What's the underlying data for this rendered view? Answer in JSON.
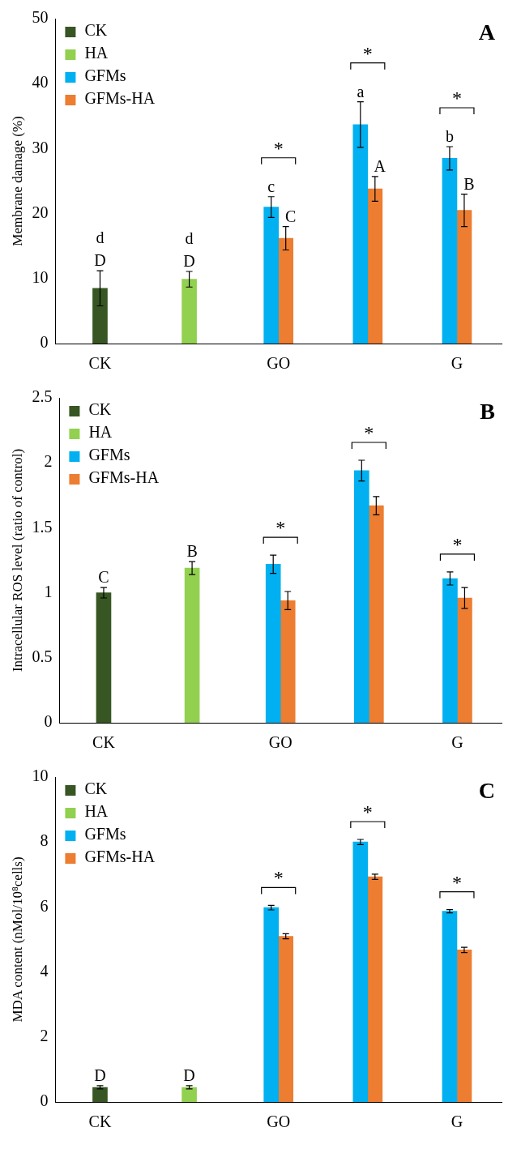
{
  "chart_data": [
    {
      "type": "bar",
      "title": "A",
      "ylabel": "Membrane damage (%)",
      "categories": [
        "CK",
        null,
        "GO",
        null,
        "G"
      ],
      "ylim": [
        0,
        50
      ],
      "yticks": [
        0,
        10,
        20,
        30,
        40,
        50
      ],
      "grid": false,
      "legend": "top left",
      "series": [
        {
          "name": "CK",
          "color": "#375623",
          "values": [
            8.5,
            null,
            null,
            null,
            null
          ],
          "errors": [
            2.7,
            null,
            null,
            null,
            null
          ],
          "value_labels": [
            "d\nD",
            null,
            null,
            null,
            null
          ]
        },
        {
          "name": "HA",
          "color": "#92d050",
          "values": [
            null,
            9.9,
            null,
            null,
            null
          ],
          "errors": [
            null,
            1.2,
            null,
            null,
            null
          ],
          "value_labels": [
            null,
            "d\nD",
            null,
            null,
            null
          ]
        },
        {
          "name": "GFMs",
          "color": "#00b0f0",
          "values": [
            null,
            null,
            21,
            33.7,
            28.5
          ],
          "errors": [
            null,
            null,
            1.6,
            3.5,
            1.8
          ],
          "value_labels": [
            null,
            null,
            "c",
            "a",
            "b"
          ]
        },
        {
          "name": "GFMs-HA",
          "color": "#ed7d31",
          "values": [
            null,
            null,
            16.2,
            23.8,
            20.5
          ],
          "errors": [
            null,
            null,
            1.8,
            1.9,
            2.5
          ],
          "value_labels": [
            null,
            null,
            "C",
            "A",
            "B"
          ]
        }
      ],
      "annotations": [
        "*",
        "*",
        "*"
      ]
    },
    {
      "type": "bar",
      "title": "B",
      "ylabel": "Intracellular ROS level (ratio of control)",
      "categories": [
        "CK",
        null,
        "GO",
        null,
        "G"
      ],
      "ylim": [
        0,
        2.5
      ],
      "yticks": [
        0,
        0.5,
        1,
        1.5,
        2,
        2.5
      ],
      "grid": false,
      "legend": "top left",
      "series": [
        {
          "name": "CK",
          "color": "#375623",
          "values": [
            1.0,
            null,
            null,
            null,
            null
          ],
          "errors": [
            0.04,
            null,
            null,
            null,
            null
          ],
          "value_labels": [
            "C",
            null,
            null,
            null,
            null
          ]
        },
        {
          "name": "HA",
          "color": "#92d050",
          "values": [
            null,
            1.19,
            null,
            null,
            null
          ],
          "errors": [
            null,
            0.05,
            null,
            null,
            null
          ],
          "value_labels": [
            null,
            "B",
            null,
            null,
            null
          ]
        },
        {
          "name": "GFMs",
          "color": "#00b0f0",
          "values": [
            null,
            null,
            1.22,
            1.94,
            1.11
          ],
          "errors": [
            null,
            null,
            0.07,
            0.08,
            0.05
          ]
        },
        {
          "name": "GFMs-HA",
          "color": "#ed7d31",
          "values": [
            null,
            null,
            0.94,
            1.67,
            0.96
          ],
          "errors": [
            null,
            null,
            0.07,
            0.07,
            0.08
          ]
        }
      ],
      "annotations": [
        "*",
        "*",
        "*"
      ]
    },
    {
      "type": "bar",
      "title": "C",
      "ylabel": "MDA content (nMol/10⁸cells)",
      "categories": [
        "CK",
        null,
        "GO",
        null,
        "G"
      ],
      "ylim": [
        0,
        10
      ],
      "yticks": [
        0,
        2,
        4,
        6,
        8,
        10
      ],
      "grid": false,
      "legend": "top left",
      "series": [
        {
          "name": "CK",
          "color": "#375623",
          "values": [
            0.45,
            null,
            null,
            null,
            null
          ],
          "errors": [
            0.05,
            null,
            null,
            null,
            null
          ],
          "value_labels": [
            "D",
            null,
            null,
            null,
            null
          ]
        },
        {
          "name": "HA",
          "color": "#92d050",
          "values": [
            null,
            0.45,
            null,
            null,
            null
          ],
          "errors": [
            null,
            0.05,
            null,
            null,
            null
          ],
          "value_labels": [
            null,
            "D",
            null,
            null,
            null
          ]
        },
        {
          "name": "GFMs",
          "color": "#00b0f0",
          "values": [
            null,
            null,
            5.98,
            8.0,
            5.87
          ],
          "errors": [
            null,
            null,
            0.07,
            0.08,
            0.05
          ]
        },
        {
          "name": "GFMs-HA",
          "color": "#ed7d31",
          "values": [
            null,
            null,
            5.1,
            6.93,
            4.68
          ],
          "errors": [
            null,
            null,
            0.08,
            0.08,
            0.08
          ]
        }
      ],
      "annotations": [
        "*",
        "*",
        "*"
      ]
    }
  ]
}
